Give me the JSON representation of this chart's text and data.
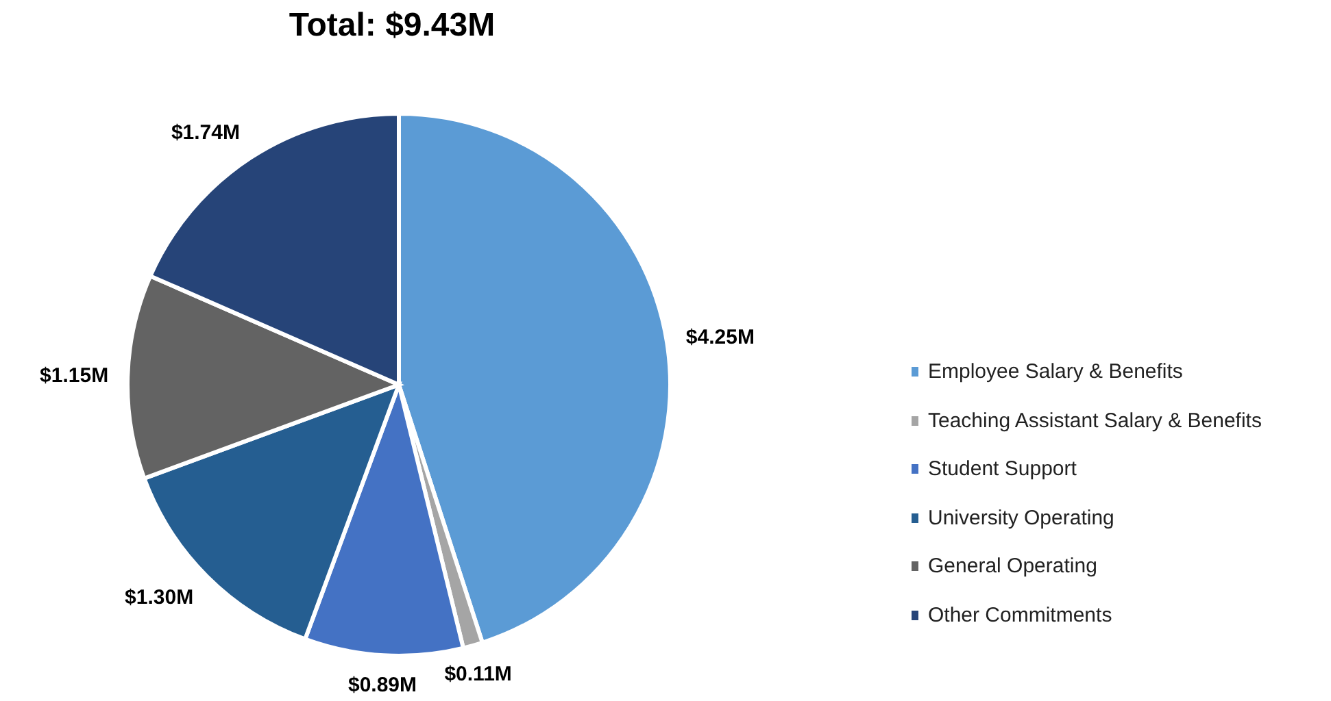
{
  "chart_data": {
    "type": "pie",
    "title": "Total: $9.43M",
    "categories": [
      "Employee Salary & Benefits",
      "Teaching Assistant Salary & Benefits",
      "Student Support",
      "University Operating",
      "General Operating",
      "Other Commitments"
    ],
    "values": [
      4.25,
      0.11,
      0.89,
      1.3,
      1.15,
      1.74
    ],
    "value_labels": [
      "$4.25M",
      "$0.11M",
      "$0.89M",
      "$1.30M",
      "$1.15M",
      "$1.74M"
    ],
    "colors": [
      "#5b9bd5",
      "#a5a5a5",
      "#4472c4",
      "#255e91",
      "#636363",
      "#264478"
    ],
    "legend": "right"
  }
}
